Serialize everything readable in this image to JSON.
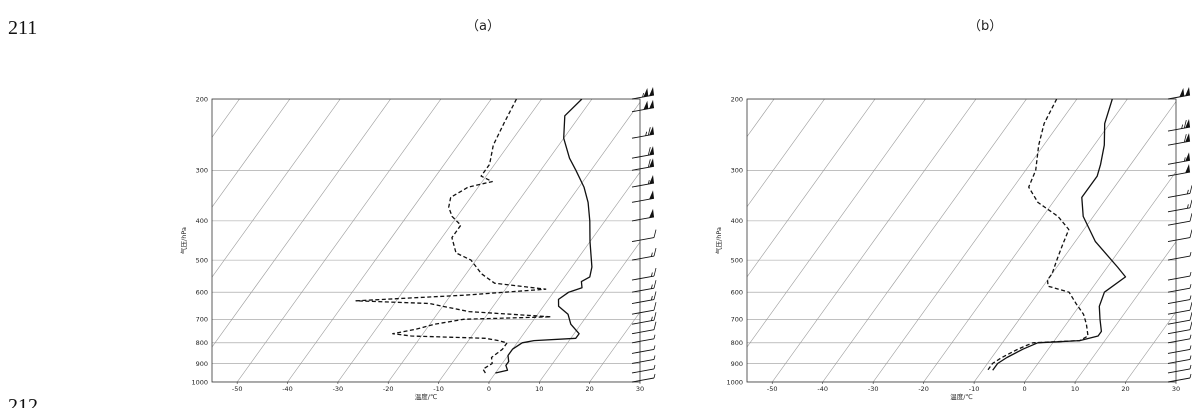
{
  "page": {
    "line_numbers": [
      "211",
      "212"
    ]
  },
  "chart_data": [
    {
      "type": "line",
      "panel_label": "（a）",
      "xlabel": "温度/℃",
      "ylabel": "气压/hPa",
      "xlim": [
        -55,
        30
      ],
      "ylim": [
        1000,
        200
      ],
      "y_scale": "log",
      "x_ticks": [
        -50,
        -40,
        -30,
        -20,
        -10,
        0,
        10,
        20,
        30
      ],
      "y_ticks": [
        200,
        300,
        400,
        500,
        600,
        700,
        800,
        900,
        1000
      ],
      "grid": "isobars and skewed isotherms",
      "series": [
        {
          "style": "solid",
          "color": "#111111",
          "points": [
            [
              -22,
              200
            ],
            [
              -23,
              220
            ],
            [
              -20,
              250
            ],
            [
              -16,
              280
            ],
            [
              -13,
              300
            ],
            [
              -9,
              330
            ],
            [
              -6,
              360
            ],
            [
              -3,
              400
            ],
            [
              0,
              450
            ],
            [
              4,
              520
            ],
            [
              5,
              550
            ],
            [
              4,
              565
            ],
            [
              5,
              585
            ],
            [
              3,
              600
            ],
            [
              2,
              625
            ],
            [
              3,
              650
            ],
            [
              6,
              680
            ],
            [
              8,
              720
            ],
            [
              11,
              760
            ],
            [
              11,
              780
            ],
            [
              3,
              790
            ],
            [
              1,
              800
            ],
            [
              0,
              830
            ],
            [
              0,
              860
            ],
            [
              1,
              890
            ],
            [
              1,
              910
            ],
            [
              2,
              935
            ],
            [
              0,
              950
            ]
          ]
        },
        {
          "style": "dashed",
          "color": "#111111",
          "points": [
            [
              -35,
              200
            ],
            [
              -34,
              230
            ],
            [
              -33,
              260
            ],
            [
              -31,
              290
            ],
            [
              -31,
              310
            ],
            [
              -28,
              320
            ],
            [
              -32,
              330
            ],
            [
              -34,
              350
            ],
            [
              -33,
              370
            ],
            [
              -31,
              390
            ],
            [
              -28,
              410
            ],
            [
              -28,
              440
            ],
            [
              -25,
              480
            ],
            [
              -21,
              500
            ],
            [
              -17,
              540
            ],
            [
              -13,
              570
            ],
            [
              -2,
              590
            ],
            [
              -17,
              610
            ],
            [
              -38,
              630
            ],
            [
              -23,
              640
            ],
            [
              -20,
              650
            ],
            [
              -14,
              670
            ],
            [
              3,
              690
            ],
            [
              -14,
              700
            ],
            [
              -19,
              720
            ],
            [
              -22,
              740
            ],
            [
              -26,
              760
            ],
            [
              -22,
              770
            ],
            [
              -7,
              780
            ],
            [
              -4,
              790
            ],
            [
              -2,
              800
            ],
            [
              -2,
              830
            ],
            [
              -3,
              870
            ],
            [
              -2,
              900
            ],
            [
              -3,
              930
            ],
            [
              -2,
              950
            ]
          ]
        }
      ],
      "wind_barbs_speed": [
        {
          "p": 200,
          "speed": 45
        },
        {
          "p": 215,
          "speed": 40
        },
        {
          "p": 250,
          "speed": 35
        },
        {
          "p": 280,
          "speed": 30
        },
        {
          "p": 300,
          "speed": 30
        },
        {
          "p": 330,
          "speed": 25
        },
        {
          "p": 360,
          "speed": 20
        },
        {
          "p": 400,
          "speed": 20
        },
        {
          "p": 450,
          "speed": 10
        },
        {
          "p": 500,
          "speed": 15
        },
        {
          "p": 560,
          "speed": 15
        },
        {
          "p": 600,
          "speed": 15
        },
        {
          "p": 640,
          "speed": 15
        },
        {
          "p": 680,
          "speed": 10
        },
        {
          "p": 720,
          "speed": 15
        },
        {
          "p": 760,
          "speed": 10
        },
        {
          "p": 800,
          "speed": 5
        },
        {
          "p": 850,
          "speed": 5
        },
        {
          "p": 900,
          "speed": 5
        },
        {
          "p": 950,
          "speed": 5
        },
        {
          "p": 1000,
          "speed": 5
        }
      ]
    },
    {
      "type": "line",
      "panel_label": "（b）",
      "xlabel": "温度/℃",
      "ylabel": "气压/hPa",
      "xlim": [
        -55,
        30
      ],
      "ylim": [
        1000,
        200
      ],
      "y_scale": "log",
      "x_ticks": [
        -50,
        -40,
        -30,
        -20,
        -10,
        0,
        10,
        20,
        30
      ],
      "y_ticks": [
        200,
        300,
        400,
        500,
        600,
        700,
        800,
        900,
        1000
      ],
      "grid": "isobars and skewed isotherms",
      "series": [
        {
          "style": "solid",
          "color": "#111111",
          "points": [
            [
              -23,
              200
            ],
            [
              -21,
              230
            ],
            [
              -18,
              260
            ],
            [
              -16,
              290
            ],
            [
              -15,
              310
            ],
            [
              -15,
              350
            ],
            [
              -12,
              390
            ],
            [
              -6,
              450
            ],
            [
              2,
              520
            ],
            [
              5,
              550
            ],
            [
              3,
              600
            ],
            [
              4,
              650
            ],
            [
              6,
              700
            ],
            [
              8,
              750
            ],
            [
              8,
              770
            ],
            [
              5,
              790
            ],
            [
              -3,
              800
            ],
            [
              -5,
              830
            ],
            [
              -7,
              870
            ],
            [
              -8,
              900
            ],
            [
              -8,
              935
            ]
          ]
        },
        {
          "style": "dashed",
          "color": "#111111",
          "points": [
            [
              -34,
              200
            ],
            [
              -33,
              230
            ],
            [
              -31,
              260
            ],
            [
              -28,
              300
            ],
            [
              -27,
              330
            ],
            [
              -23,
              360
            ],
            [
              -17,
              390
            ],
            [
              -13,
              420
            ],
            [
              -12,
              460
            ],
            [
              -11,
              500
            ],
            [
              -10,
              540
            ],
            [
              -10,
              560
            ],
            [
              -9,
              580
            ],
            [
              -4,
              600
            ],
            [
              -1,
              640
            ],
            [
              2,
              680
            ],
            [
              4,
              720
            ],
            [
              6,
              770
            ],
            [
              5,
              790
            ],
            [
              -4,
              800
            ],
            [
              -6,
              830
            ],
            [
              -8,
              870
            ],
            [
              -9,
              900
            ],
            [
              -9,
              935
            ]
          ]
        }
      ],
      "wind_barbs_speed": [
        {
          "p": 200,
          "speed": 40
        },
        {
          "p": 240,
          "speed": 35
        },
        {
          "p": 260,
          "speed": 30
        },
        {
          "p": 290,
          "speed": 25
        },
        {
          "p": 310,
          "speed": 20
        },
        {
          "p": 350,
          "speed": 15
        },
        {
          "p": 380,
          "speed": 15
        },
        {
          "p": 410,
          "speed": 10
        },
        {
          "p": 450,
          "speed": 10
        },
        {
          "p": 500,
          "speed": 5
        },
        {
          "p": 560,
          "speed": 5
        },
        {
          "p": 600,
          "speed": 5
        },
        {
          "p": 640,
          "speed": 5
        },
        {
          "p": 680,
          "speed": 10
        },
        {
          "p": 720,
          "speed": 10
        },
        {
          "p": 760,
          "speed": 10
        },
        {
          "p": 800,
          "speed": 5
        },
        {
          "p": 850,
          "speed": 5
        },
        {
          "p": 900,
          "speed": 5
        },
        {
          "p": 950,
          "speed": 5
        },
        {
          "p": 1000,
          "speed": 5
        }
      ]
    }
  ]
}
